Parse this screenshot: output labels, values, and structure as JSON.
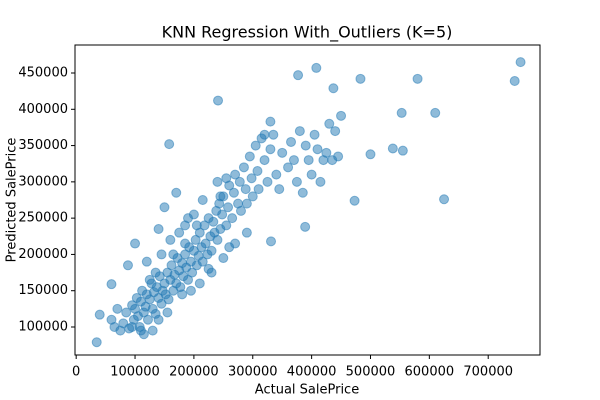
{
  "chart_data": {
    "type": "scatter",
    "title": "KNN Regression With_Outliers (K=5)",
    "xlabel": "Actual SalePrice",
    "ylabel": "Predicted SalePrice",
    "color": "#1f77b4",
    "alpha": 0.5,
    "grid": false,
    "xlim": [
      -2000,
      788000
    ],
    "ylim": [
      61400,
      488600
    ],
    "xticks": [
      0,
      100000,
      200000,
      300000,
      400000,
      500000,
      600000,
      700000
    ],
    "yticks": [
      100000,
      150000,
      200000,
      250000,
      300000,
      350000,
      400000,
      450000
    ],
    "x": [
      755000,
      745000,
      625000,
      610000,
      580000,
      553000,
      555000,
      538000,
      500000,
      483000,
      473000,
      450000,
      437000,
      408000,
      377000,
      241000,
      158000,
      389000,
      331000,
      60000,
      34900,
      40000,
      80000,
      85000,
      90000,
      95000,
      98000,
      100000,
      103000,
      105000,
      108000,
      110000,
      112000,
      115000,
      118000,
      120000,
      122000,
      125000,
      128000,
      130000,
      132000,
      135000,
      137000,
      140000,
      142000,
      145000,
      147000,
      150000,
      152000,
      155000,
      157000,
      160000,
      162000,
      165000,
      167000,
      170000,
      172000,
      175000,
      177000,
      180000,
      182000,
      185000,
      187000,
      190000,
      192000,
      195000,
      197000,
      200000,
      203000,
      205000,
      208000,
      210000,
      213000,
      215000,
      218000,
      220000,
      223000,
      225000,
      228000,
      230000,
      233000,
      235000,
      238000,
      240000,
      243000,
      245000,
      248000,
      250000,
      255000,
      258000,
      260000,
      265000,
      268000,
      270000,
      275000,
      278000,
      280000,
      285000,
      288000,
      290000,
      295000,
      298000,
      300000,
      305000,
      308000,
      310000,
      315000,
      320000,
      325000,
      330000,
      335000,
      340000,
      345000,
      350000,
      360000,
      365000,
      370000,
      375000,
      380000,
      385000,
      390000,
      395000,
      400000,
      405000,
      410000,
      415000,
      420000,
      425000,
      430000,
      435000,
      440000,
      445000,
      60000,
      65000,
      70000,
      75000,
      88000,
      100000,
      120000,
      140000,
      150000,
      170000,
      185000,
      210000,
      230000,
      250000,
      270000,
      290000,
      200000,
      160000,
      130000,
      115000,
      240000,
      255000,
      320000,
      330000,
      180000,
      195000,
      225000,
      260000,
      140000,
      155000,
      110000,
      95000,
      175000,
      190000,
      215000,
      245000,
      145000,
      165000,
      185000,
      205000,
      135000,
      125000
    ],
    "values": [
      465000,
      439000,
      276000,
      395000,
      442000,
      395000,
      343000,
      346000,
      338000,
      442000,
      274000,
      391000,
      429000,
      457000,
      447000,
      412000,
      352000,
      238000,
      218000,
      159000,
      79000,
      117000,
      105000,
      120000,
      98000,
      130000,
      110000,
      125000,
      140000,
      115000,
      100000,
      135000,
      150000,
      120000,
      128000,
      145000,
      110000,
      138000,
      160000,
      125000,
      148000,
      118000,
      155000,
      140000,
      170000,
      132000,
      150000,
      160000,
      145000,
      175000,
      138000,
      165000,
      185000,
      150000,
      172000,
      160000,
      195000,
      178000,
      155000,
      188000,
      170000,
      200000,
      182000,
      165000,
      210000,
      190000,
      175000,
      205000,
      220000,
      185000,
      198000,
      230000,
      210000,
      190000,
      240000,
      215000,
      200000,
      250000,
      225000,
      205000,
      245000,
      230000,
      260000,
      220000,
      270000,
      235000,
      255000,
      280000,
      240000,
      265000,
      295000,
      250000,
      285000,
      310000,
      270000,
      300000,
      260000,
      320000,
      290000,
      270000,
      335000,
      305000,
      280000,
      350000,
      315000,
      290000,
      360000,
      330000,
      300000,
      345000,
      365000,
      310000,
      290000,
      340000,
      320000,
      355000,
      330000,
      300000,
      370000,
      285000,
      350000,
      330000,
      310000,
      365000,
      345000,
      300000,
      330000,
      340000,
      380000,
      330000,
      370000,
      335000,
      110000,
      100000,
      125000,
      95000,
      185000,
      215000,
      190000,
      235000,
      265000,
      285000,
      240000,
      160000,
      175000,
      195000,
      215000,
      230000,
      255000,
      220000,
      95000,
      90000,
      300000,
      305000,
      365000,
      383000,
      145000,
      150000,
      180000,
      210000,
      110000,
      120000,
      95000,
      100000,
      230000,
      250000,
      275000,
      280000,
      200000,
      200000,
      215000,
      240000,
      175000,
      165000
    ]
  }
}
